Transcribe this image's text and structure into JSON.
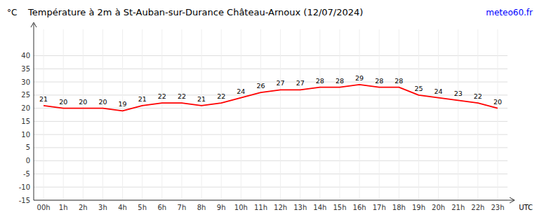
{
  "chart_data": {
    "type": "line",
    "title": "Température à 2m à St-Auban-sur-Durance Château-Arnoux (12/07/2024)",
    "y_label": "°C",
    "x_label": "UTC",
    "annotations": [
      "meteo60.fr"
    ],
    "categories": [
      "00h",
      "1h",
      "2h",
      "3h",
      "4h",
      "5h",
      "6h",
      "7h",
      "8h",
      "9h",
      "10h",
      "11h",
      "12h",
      "13h",
      "14h",
      "15h",
      "16h",
      "17h",
      "18h",
      "19h",
      "20h",
      "21h",
      "22h",
      "23h"
    ],
    "values": [
      21,
      20,
      20,
      20,
      19,
      21,
      22,
      22,
      21,
      22,
      24,
      26,
      27,
      27,
      28,
      28,
      29,
      28,
      28,
      25,
      24,
      23,
      22,
      20
    ],
    "color": "#ff0000",
    "ylim": [
      -15,
      50
    ],
    "yticks": [
      -15,
      -10,
      -5,
      0,
      5,
      10,
      15,
      20,
      25,
      30,
      35,
      40
    ],
    "grid": true,
    "data_labels": true
  }
}
